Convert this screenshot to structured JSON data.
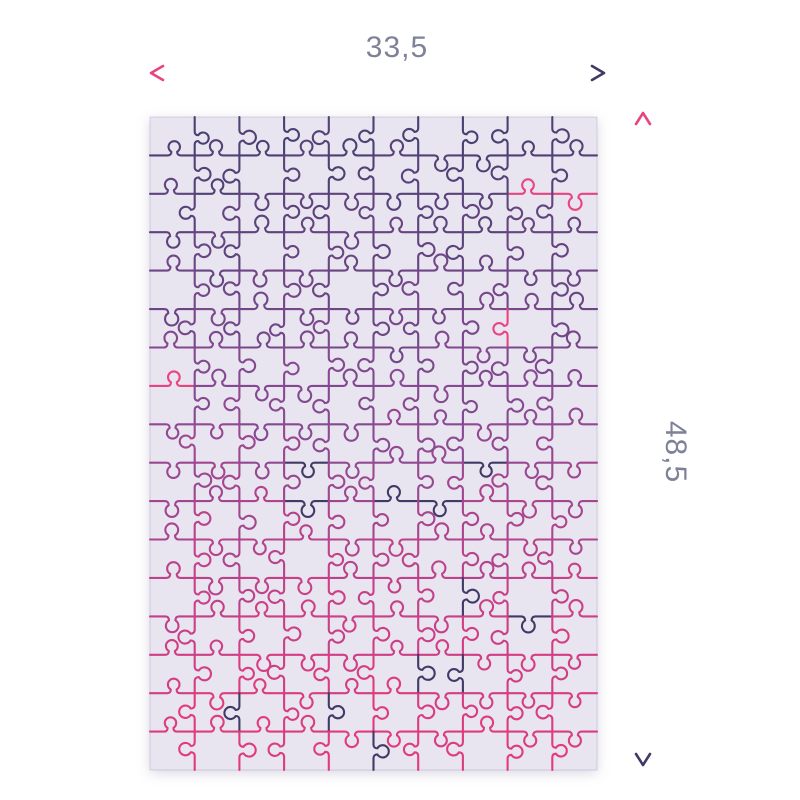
{
  "dimensions": {
    "width_label": "33,5",
    "height_label": "48,5"
  },
  "style": {
    "label_color": "#7e8198",
    "pink": "#e8447f",
    "navy": "#413a66",
    "puzzle_bg": "#e8e4f0",
    "page_bg": "#ffffff"
  },
  "puzzle": {
    "cols": 10,
    "rows": 17,
    "seed": 7,
    "accent_probability": 0.07,
    "line_width": 2.1,
    "gradient_stops": [
      {
        "t": 0.0,
        "color": "#474070"
      },
      {
        "t": 0.45,
        "color": "#8a4a93"
      },
      {
        "t": 0.75,
        "color": "#c74088"
      },
      {
        "t": 1.0,
        "color": "#e53a7c"
      }
    ]
  }
}
